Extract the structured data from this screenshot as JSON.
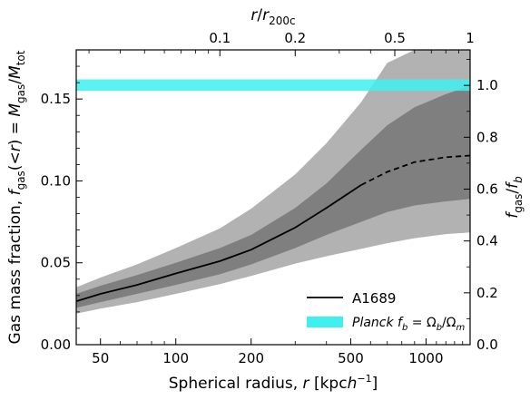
{
  "chart_data": {
    "type": "area",
    "title": "",
    "xlabel": "Spherical radius, r [kpc h⁻¹]",
    "ylabel_left": "Gas mass fraction, f_gas(<r) = M_gas/M_tot",
    "ylabel_right": "f_gas / f_b",
    "xlabel_top": "r / r_200c",
    "xscale": "log",
    "xlim": [
      40,
      1500
    ],
    "ylim": [
      0,
      0.18
    ],
    "ylim_right": [
      0,
      1.137
    ],
    "xticks": [
      50,
      100,
      200,
      500,
      1000
    ],
    "xticklabels": [
      "50",
      "100",
      "200",
      "500",
      "1000"
    ],
    "yticks": [
      0.0,
      0.05,
      0.1,
      0.15
    ],
    "yticklabels": [
      "0.00",
      "0.05",
      "0.10",
      "0.15"
    ],
    "yticks_right": [
      0.0,
      0.2,
      0.4,
      0.6,
      0.8,
      1.0
    ],
    "yticklabels_right": [
      "0.0",
      "0.2",
      "0.4",
      "0.6",
      "0.8",
      "1.0"
    ],
    "top_ticks_r_over_r200c": [
      0.1,
      0.2,
      0.5,
      1
    ],
    "top_ticklabels": [
      "0.1",
      "0.2",
      "0.5",
      "1"
    ],
    "r200c_kpch": 1500,
    "legend_position": "lower right",
    "colors": {
      "outer_band": "#b2b2b2",
      "inner_band": "#7f7f7f",
      "line": "#000000",
      "planck_band": "#3ef0f0"
    },
    "series": [
      {
        "name": "A1689",
        "style": "solid",
        "x": [
          40,
          50,
          70,
          100,
          150,
          200,
          300,
          400,
          550
        ],
        "y": [
          0.0265,
          0.031,
          0.0365,
          0.0435,
          0.051,
          0.058,
          0.0715,
          0.0835,
          0.0975
        ]
      },
      {
        "name": "A1689 (extrapolated)",
        "style": "dashed",
        "x": [
          550,
          700,
          900,
          1200,
          1500
        ],
        "y": [
          0.0975,
          0.1055,
          0.1115,
          0.1145,
          0.1155
        ]
      }
    ],
    "bands": [
      {
        "name": "outer",
        "x": [
          40,
          50,
          70,
          100,
          150,
          200,
          300,
          400,
          550,
          700,
          900,
          1200,
          1500
        ],
        "lower": [
          0.019,
          0.022,
          0.026,
          0.031,
          0.037,
          0.042,
          0.0495,
          0.054,
          0.0585,
          0.062,
          0.065,
          0.0675,
          0.0685
        ],
        "upper": [
          0.035,
          0.041,
          0.049,
          0.059,
          0.071,
          0.083,
          0.104,
          0.123,
          0.148,
          0.172,
          0.18,
          0.18,
          0.18
        ]
      },
      {
        "name": "inner",
        "x": [
          40,
          50,
          70,
          100,
          150,
          200,
          300,
          400,
          550,
          700,
          900,
          1200,
          1500
        ],
        "lower": [
          0.0225,
          0.026,
          0.031,
          0.0365,
          0.043,
          0.049,
          0.059,
          0.067,
          0.075,
          0.081,
          0.085,
          0.0875,
          0.089
        ],
        "upper": [
          0.031,
          0.036,
          0.0425,
          0.05,
          0.059,
          0.067,
          0.0835,
          0.0985,
          0.119,
          0.134,
          0.145,
          0.153,
          0.158
        ]
      }
    ],
    "hband": {
      "name": "Planck f_b = Ω_b/Ω_m",
      "ymin": 0.155,
      "ymax": 0.162
    },
    "legend": [
      {
        "label": "A1689",
        "kind": "line"
      },
      {
        "label": "Planck f_b = Ω_b/Ω_m",
        "kind": "band"
      }
    ]
  }
}
